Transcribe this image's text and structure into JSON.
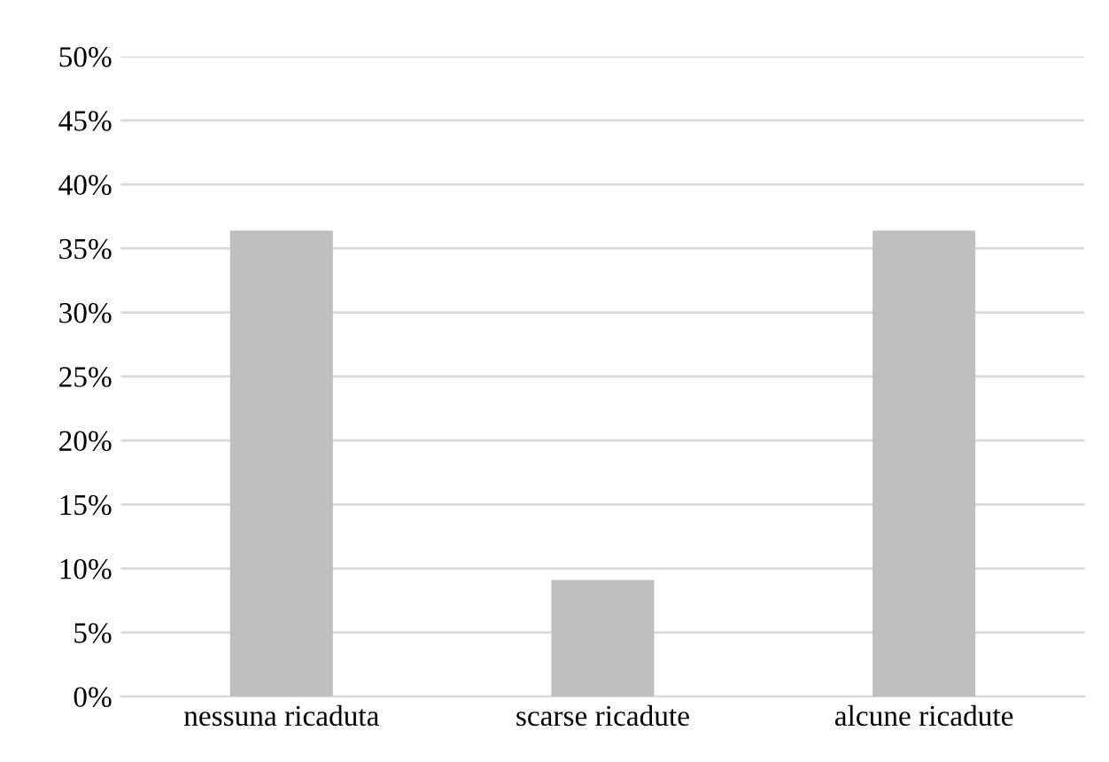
{
  "chart_data": {
    "type": "bar",
    "categories": [
      "nessuna ricaduta",
      "scarse ricadute",
      "alcune ricadute"
    ],
    "values": [
      36.4,
      9.1,
      36.4
    ],
    "color": "#bfbfbf",
    "ylim": [
      0,
      50
    ],
    "yticks": [
      {
        "value": 0,
        "label": "0%"
      },
      {
        "value": 5,
        "label": "5%"
      },
      {
        "value": 10,
        "label": "10%"
      },
      {
        "value": 15,
        "label": "15%"
      },
      {
        "value": 20,
        "label": "20%"
      },
      {
        "value": 25,
        "label": "25%"
      },
      {
        "value": 30,
        "label": "30%"
      },
      {
        "value": 35,
        "label": "35%"
      },
      {
        "value": 40,
        "label": "40%"
      },
      {
        "value": 45,
        "label": "45%"
      },
      {
        "value": 50,
        "label": "50%"
      }
    ],
    "grid": "y"
  }
}
